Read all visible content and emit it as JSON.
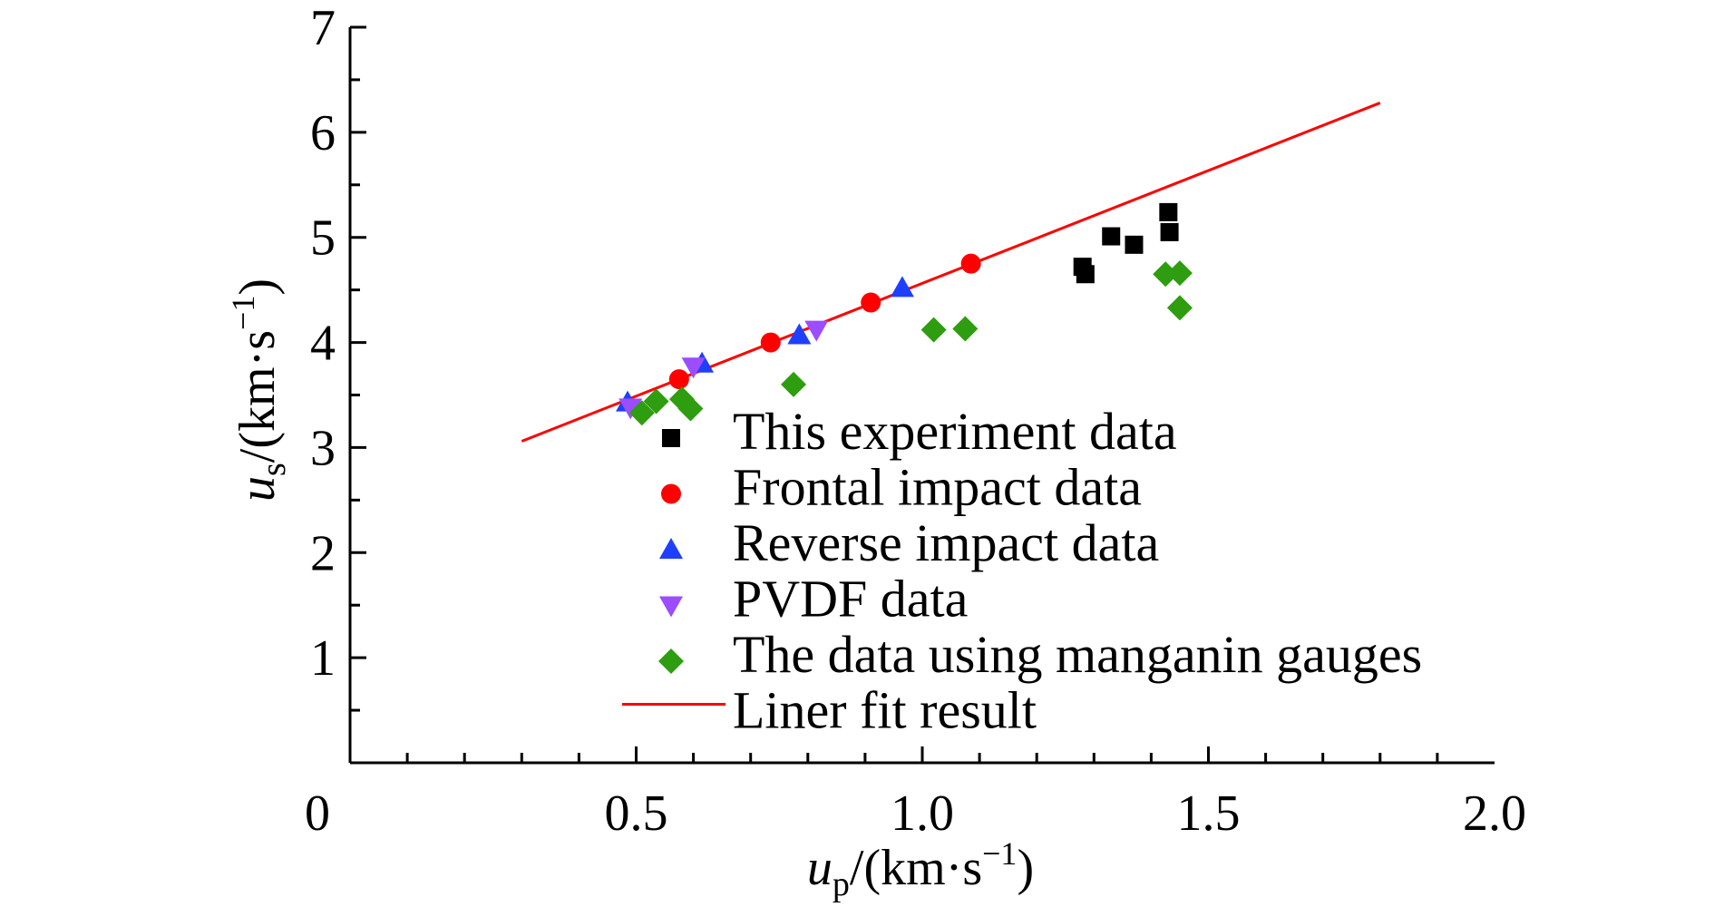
{
  "chart_data": {
    "type": "scatter",
    "xlabel": {
      "var": "u",
      "sub": "p",
      "unit": "/(km·s",
      "exp": "−1",
      "close": ")"
    },
    "ylabel": {
      "var": "u",
      "sub": "s",
      "unit": "/(km·s",
      "exp": "−1",
      "close": ")"
    },
    "xlim": [
      0,
      2.0
    ],
    "ylim": [
      0,
      7
    ],
    "x_tick_labels": [
      {
        "value": 0,
        "label": "0"
      },
      {
        "value": 0.5,
        "label": "0.5"
      },
      {
        "value": 1.0,
        "label": "1.0"
      },
      {
        "value": 1.5,
        "label": "1.5"
      },
      {
        "value": 2.0,
        "label": "2.0"
      }
    ],
    "y_tick_labels": [
      {
        "value": 1,
        "label": "1"
      },
      {
        "value": 2,
        "label": "2"
      },
      {
        "value": 3,
        "label": "3"
      },
      {
        "value": 4,
        "label": "4"
      },
      {
        "value": 5,
        "label": "5"
      },
      {
        "value": 6,
        "label": "6"
      },
      {
        "value": 7,
        "label": "7"
      }
    ],
    "x_minor_step": 0.1,
    "y_minor_step": 0.5,
    "grid": false,
    "legend_placement": "lower-right",
    "series": [
      {
        "name": "This experiment data",
        "marker": "square",
        "color": "#000000",
        "points": [
          [
            1.28,
            4.72
          ],
          [
            1.285,
            4.65
          ],
          [
            1.33,
            5.01
          ],
          [
            1.37,
            4.93
          ],
          [
            1.43,
            5.24
          ],
          [
            1.432,
            5.05
          ]
        ]
      },
      {
        "name": "Frontal impact data",
        "marker": "circle",
        "color": "#ff0000",
        "points": [
          [
            0.575,
            3.65
          ],
          [
            0.735,
            4.0
          ],
          [
            0.91,
            4.38
          ],
          [
            1.085,
            4.75
          ]
        ]
      },
      {
        "name": "Reverse impact data",
        "marker": "triangle-up",
        "color": "#1f3fff",
        "points": [
          [
            0.485,
            3.43
          ],
          [
            0.615,
            3.8
          ],
          [
            0.785,
            4.07
          ],
          [
            0.965,
            4.52
          ]
        ]
      },
      {
        "name": "PVDF data",
        "marker": "triangle-down",
        "color": "#9b4dff",
        "points": [
          [
            0.49,
            3.38
          ],
          [
            0.6,
            3.77
          ],
          [
            0.815,
            4.12
          ]
        ]
      },
      {
        "name": "The data using manganin gauges",
        "marker": "diamond",
        "color": "#2e9d0f",
        "points": [
          [
            0.51,
            3.33
          ],
          [
            0.535,
            3.44
          ],
          [
            0.58,
            3.46
          ],
          [
            0.595,
            3.37
          ],
          [
            0.775,
            3.6
          ],
          [
            1.02,
            4.12
          ],
          [
            1.075,
            4.13
          ],
          [
            1.425,
            4.65
          ],
          [
            1.45,
            4.66
          ],
          [
            1.45,
            4.33
          ]
        ]
      }
    ],
    "fit": {
      "name": "Liner fit result",
      "color": "#ff0000",
      "x": [
        0.3,
        1.8
      ],
      "y": [
        3.06,
        6.28
      ]
    }
  }
}
